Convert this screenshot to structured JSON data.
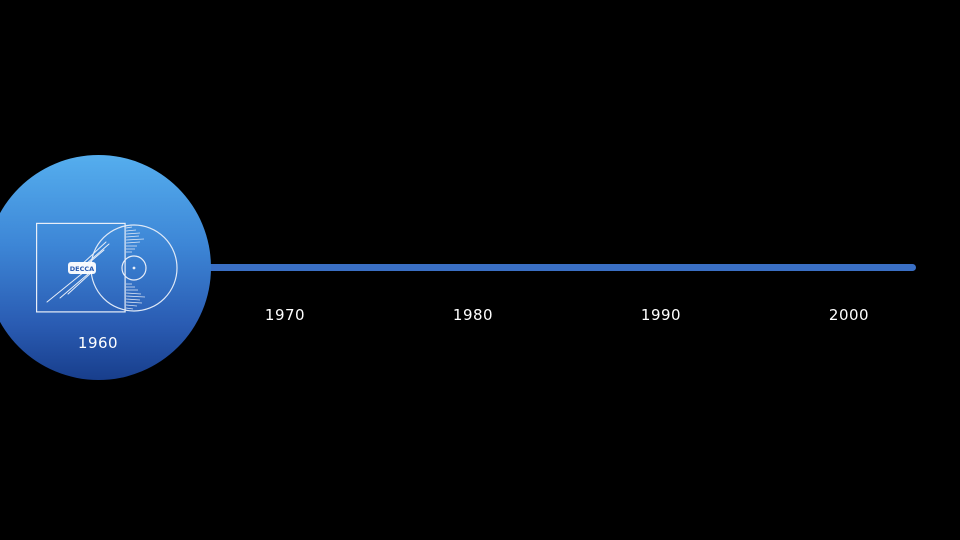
{
  "timeline": {
    "active_year": "1960",
    "years": [
      "1970",
      "1980",
      "1990",
      "2000"
    ],
    "logo_text": "DECCA",
    "colors": {
      "track": "#3a6fc4",
      "circle_top": "#55aeee",
      "circle_bottom": "#183e8c",
      "background": "#000000"
    }
  }
}
